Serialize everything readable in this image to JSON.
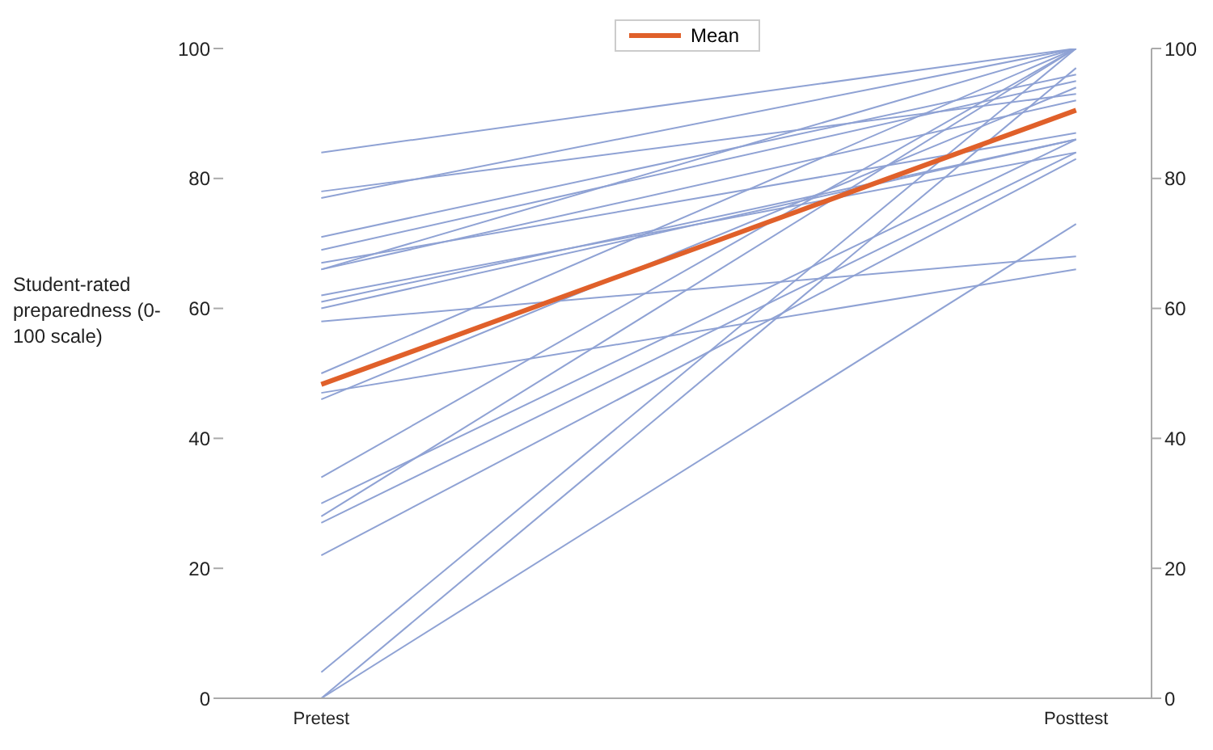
{
  "chart_data": {
    "type": "line",
    "ylabel": "Student-rated preparedness (0-100 scale)",
    "categories": [
      "Pretest",
      "Posttest"
    ],
    "ylim": [
      0,
      100
    ],
    "yticks": [
      0,
      20,
      40,
      60,
      80,
      100
    ],
    "y2lim": [
      0,
      100
    ],
    "y2ticks": [
      0,
      20,
      40,
      60,
      80,
      100
    ],
    "legend": "top",
    "marker": "none",
    "line_style": "solid",
    "series": [
      {
        "color": "#8fa2d4",
        "values": [
          84,
          100
        ]
      },
      {
        "color": "#8fa2d4",
        "values": [
          78,
          93
        ]
      },
      {
        "color": "#8fa2d4",
        "values": [
          77,
          100
        ]
      },
      {
        "color": "#8fa2d4",
        "values": [
          71,
          96
        ]
      },
      {
        "color": "#8fa2d4",
        "values": [
          69,
          95
        ]
      },
      {
        "color": "#8fa2d4",
        "values": [
          67,
          87
        ]
      },
      {
        "color": "#8fa2d4",
        "values": [
          66,
          100
        ]
      },
      {
        "color": "#8fa2d4",
        "values": [
          66,
          92
        ]
      },
      {
        "color": "#8fa2d4",
        "values": [
          62,
          84
        ]
      },
      {
        "color": "#8fa2d4",
        "values": [
          61,
          86
        ]
      },
      {
        "color": "#8fa2d4",
        "values": [
          60,
          86
        ]
      },
      {
        "color": "#8fa2d4",
        "values": [
          58,
          68
        ]
      },
      {
        "color": "#8fa2d4",
        "values": [
          50,
          100
        ]
      },
      {
        "color": "#8fa2d4",
        "values": [
          47,
          66
        ]
      },
      {
        "color": "#8fa2d4",
        "values": [
          46,
          94
        ]
      },
      {
        "color": "#8fa2d4",
        "values": [
          34,
          100
        ]
      },
      {
        "color": "#8fa2d4",
        "values": [
          30,
          86
        ]
      },
      {
        "color": "#8fa2d4",
        "values": [
          28,
          100
        ]
      },
      {
        "color": "#8fa2d4",
        "values": [
          27,
          84
        ]
      },
      {
        "color": "#8fa2d4",
        "values": [
          22,
          83
        ]
      },
      {
        "color": "#8fa2d4",
        "values": [
          4,
          100
        ]
      },
      {
        "color": "#8fa2d4",
        "values": [
          0,
          97
        ]
      },
      {
        "color": "#8fa2d4",
        "values": [
          0,
          73
        ]
      },
      {
        "name": "Mean",
        "color": "#e0602a",
        "values": [
          48.3,
          90.5
        ]
      }
    ]
  }
}
